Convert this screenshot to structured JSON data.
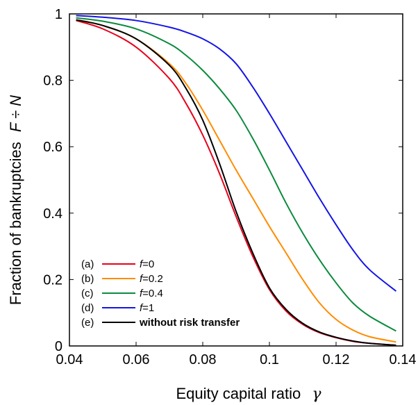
{
  "chart_data": {
    "type": "line",
    "xlabel": "Equity capital ratio",
    "xlabel_symbol": "γ",
    "ylabel": "Fraction of bankruptcies",
    "ylabel_symbol": "F ÷ N",
    "xlim": [
      0.04,
      0.14
    ],
    "ylim": [
      0,
      1
    ],
    "xticks": [
      "0.04",
      "0.06",
      "0.08",
      "0.1",
      "0.12",
      "0.14"
    ],
    "yticks": [
      "0",
      "0.2",
      "0.4",
      "0.6",
      "0.8",
      "1"
    ],
    "grid": false,
    "legend_position": "bottom-left",
    "series": [
      {
        "id": "a",
        "tag": "(a)",
        "name_var": "f",
        "name_rest": "=0",
        "color": "#e8001c",
        "x": [
          0.042,
          0.05,
          0.06,
          0.07,
          0.075,
          0.08,
          0.085,
          0.09,
          0.095,
          0.1,
          0.105,
          0.11,
          0.115,
          0.12,
          0.125,
          0.13,
          0.138
        ],
        "y": [
          0.98,
          0.955,
          0.9,
          0.805,
          0.73,
          0.635,
          0.52,
          0.39,
          0.27,
          0.17,
          0.105,
          0.065,
          0.04,
          0.025,
          0.014,
          0.008,
          0.002
        ]
      },
      {
        "id": "b",
        "tag": "(b)",
        "name_var": "f",
        "name_rest": "=0.2",
        "color": "#ff8c00",
        "x": [
          0.042,
          0.05,
          0.06,
          0.07,
          0.075,
          0.08,
          0.085,
          0.09,
          0.095,
          0.1,
          0.105,
          0.11,
          0.115,
          0.12,
          0.125,
          0.13,
          0.138
        ],
        "y": [
          0.982,
          0.965,
          0.925,
          0.85,
          0.79,
          0.71,
          0.62,
          0.53,
          0.445,
          0.36,
          0.28,
          0.2,
          0.13,
          0.08,
          0.048,
          0.028,
          0.012
        ]
      },
      {
        "id": "c",
        "tag": "(c)",
        "name_var": "f",
        "name_rest": "=0.4",
        "color": "#0a8a3c",
        "x": [
          0.042,
          0.05,
          0.06,
          0.07,
          0.075,
          0.08,
          0.085,
          0.09,
          0.095,
          0.1,
          0.105,
          0.11,
          0.115,
          0.12,
          0.125,
          0.13,
          0.138
        ],
        "y": [
          0.988,
          0.978,
          0.955,
          0.91,
          0.875,
          0.83,
          0.775,
          0.71,
          0.625,
          0.53,
          0.43,
          0.34,
          0.26,
          0.19,
          0.13,
          0.09,
          0.045
        ]
      },
      {
        "id": "d",
        "tag": "(d)",
        "name_var": "f",
        "name_rest": "=1",
        "color": "#1414e6",
        "x": [
          0.042,
          0.05,
          0.06,
          0.07,
          0.075,
          0.08,
          0.085,
          0.09,
          0.095,
          0.1,
          0.105,
          0.11,
          0.115,
          0.12,
          0.125,
          0.13,
          0.138
        ],
        "y": [
          0.995,
          0.99,
          0.98,
          0.96,
          0.945,
          0.925,
          0.895,
          0.85,
          0.78,
          0.7,
          0.615,
          0.53,
          0.445,
          0.365,
          0.29,
          0.23,
          0.165
        ]
      },
      {
        "id": "e",
        "tag": "(e)",
        "name_var": "",
        "name_rest": "without risk transfer",
        "color": "#000000",
        "x": [
          0.042,
          0.05,
          0.06,
          0.07,
          0.075,
          0.08,
          0.085,
          0.09,
          0.095,
          0.1,
          0.105,
          0.11,
          0.115,
          0.12,
          0.125,
          0.13,
          0.138
        ],
        "y": [
          0.982,
          0.965,
          0.925,
          0.845,
          0.775,
          0.68,
          0.55,
          0.405,
          0.28,
          0.175,
          0.11,
          0.068,
          0.042,
          0.026,
          0.015,
          0.008,
          0.002
        ]
      }
    ]
  }
}
